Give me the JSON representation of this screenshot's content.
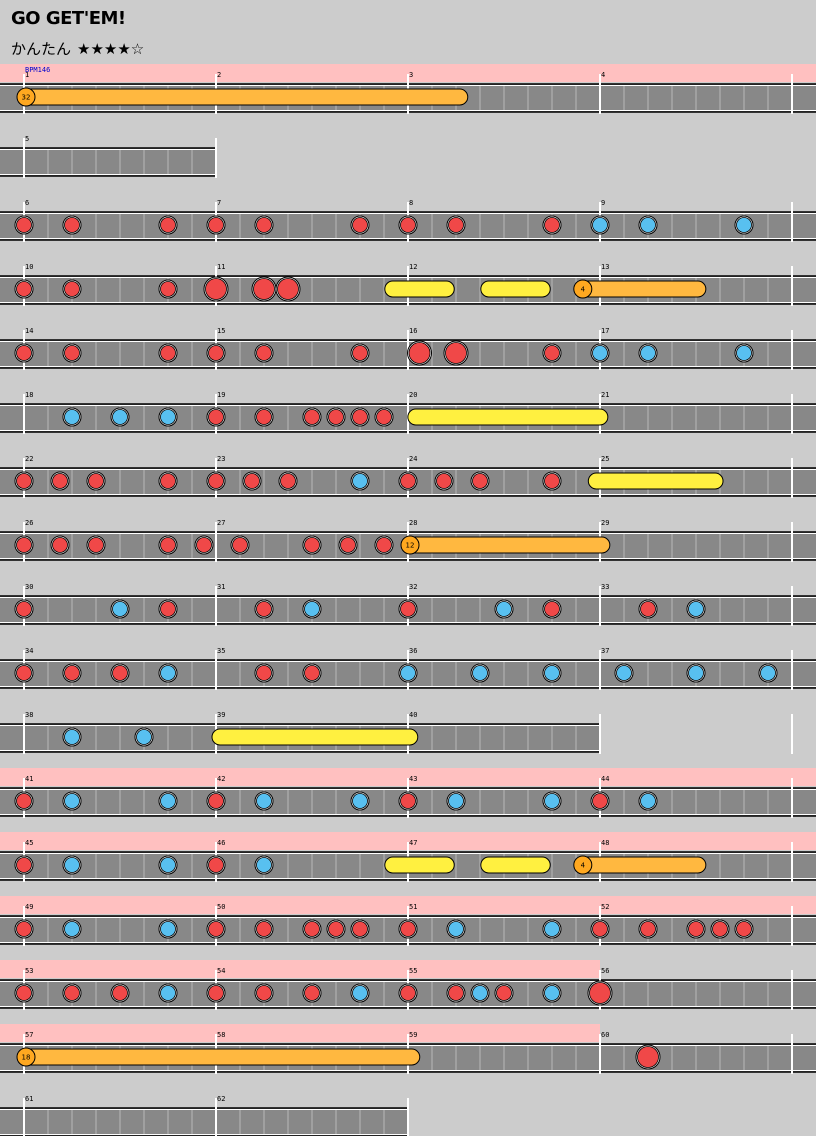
{
  "title": "GO GET'EM!",
  "difficulty": {
    "label": "かんたん",
    "stars": "★★★★☆"
  },
  "colors": {
    "background": "#cccccc",
    "lane": "#888888",
    "gogo_band": "#ffc0c0",
    "don": "#f04848",
    "ka": "#58c0f0",
    "drumroll": "#fff040",
    "balloon": "#ffb840",
    "bpm_text": "#0000cc"
  },
  "bpm_label": "BPM146",
  "rows": [
    {
      "measures": [
        1,
        2,
        3,
        4
      ],
      "gogo": true,
      "bpm": true,
      "notes": [],
      "rolls": [],
      "balloons": [
        {
          "start": 0,
          "end": 2.28,
          "count": "32"
        }
      ]
    },
    {
      "measures": [
        5
      ],
      "gogo": false,
      "notes": [],
      "rolls": [],
      "balloons": []
    },
    {
      "measures": [
        6,
        7,
        8,
        9
      ],
      "gogo": false,
      "notes": [
        [
          0,
          "d"
        ],
        [
          0.25,
          "d"
        ],
        [
          0.75,
          "d"
        ],
        [
          1,
          "d"
        ],
        [
          1.25,
          "d"
        ],
        [
          1.75,
          "d"
        ],
        [
          2,
          "d"
        ],
        [
          2.25,
          "d"
        ],
        [
          2.75,
          "d"
        ],
        [
          3,
          "k"
        ],
        [
          3.25,
          "k"
        ],
        [
          3.75,
          "k"
        ]
      ],
      "rolls": [],
      "balloons": []
    },
    {
      "measures": [
        10,
        11,
        12,
        13
      ],
      "gogo": false,
      "notes": [
        [
          0,
          "d"
        ],
        [
          0.25,
          "d"
        ],
        [
          0.75,
          "d"
        ],
        [
          1,
          "D"
        ],
        [
          1.25,
          "D"
        ],
        [
          1.375,
          "D"
        ]
      ],
      "rolls": [
        [
          1.9,
          2.22
        ],
        [
          2.4,
          2.72
        ]
      ],
      "balloons": [
        {
          "start": 2.9,
          "end": 3.52,
          "count": "4"
        }
      ]
    },
    {
      "measures": [
        14,
        15,
        16,
        17
      ],
      "gogo": false,
      "notes": [
        [
          0,
          "d"
        ],
        [
          0.25,
          "d"
        ],
        [
          0.75,
          "d"
        ],
        [
          1,
          "d"
        ],
        [
          1.25,
          "d"
        ],
        [
          1.75,
          "d"
        ],
        [
          2.06,
          "D"
        ],
        [
          2.25,
          "D"
        ],
        [
          2.75,
          "d"
        ],
        [
          3,
          "k"
        ],
        [
          3.25,
          "k"
        ],
        [
          3.75,
          "k"
        ]
      ],
      "rolls": [],
      "balloons": []
    },
    {
      "measures": [
        18,
        19,
        20,
        21
      ],
      "gogo": false,
      "notes": [
        [
          0.25,
          "k"
        ],
        [
          0.5,
          "k"
        ],
        [
          0.75,
          "k"
        ],
        [
          1,
          "d"
        ],
        [
          1.25,
          "d"
        ],
        [
          1.5,
          "d"
        ],
        [
          1.625,
          "d"
        ],
        [
          1.75,
          "d"
        ],
        [
          1.875,
          "d"
        ]
      ],
      "rolls": [
        [
          2.02,
          3.02
        ]
      ],
      "balloons": []
    },
    {
      "measures": [
        22,
        23,
        24,
        25
      ],
      "gogo": false,
      "notes": [
        [
          0,
          "d"
        ],
        [
          0.1875,
          "d"
        ],
        [
          0.375,
          "d"
        ],
        [
          0.75,
          "d"
        ],
        [
          1,
          "d"
        ],
        [
          1.1875,
          "d"
        ],
        [
          1.375,
          "d"
        ],
        [
          1.75,
          "k"
        ],
        [
          2,
          "d"
        ],
        [
          2.1875,
          "d"
        ],
        [
          2.375,
          "d"
        ],
        [
          2.75,
          "d"
        ]
      ],
      "rolls": [
        [
          2.96,
          3.62
        ]
      ],
      "balloons": []
    },
    {
      "measures": [
        26,
        27,
        28,
        29
      ],
      "gogo": false,
      "notes": [
        [
          0,
          "d"
        ],
        [
          0.1875,
          "d"
        ],
        [
          0.375,
          "d"
        ],
        [
          0.75,
          "d"
        ],
        [
          0.9375,
          "d"
        ],
        [
          1.125,
          "d"
        ],
        [
          1.5,
          "d"
        ],
        [
          1.6875,
          "d"
        ],
        [
          1.875,
          "d"
        ]
      ],
      "rolls": [],
      "balloons": [
        {
          "start": 2,
          "end": 3.02,
          "count": "12"
        }
      ]
    },
    {
      "measures": [
        30,
        31,
        32,
        33
      ],
      "gogo": false,
      "notes": [
        [
          0,
          "d"
        ],
        [
          0.5,
          "k"
        ],
        [
          0.75,
          "d"
        ],
        [
          1.25,
          "d"
        ],
        [
          1.5,
          "k"
        ],
        [
          2,
          "d"
        ],
        [
          2.5,
          "k"
        ],
        [
          2.75,
          "d"
        ],
        [
          3.25,
          "d"
        ],
        [
          3.5,
          "k"
        ]
      ],
      "rolls": [],
      "balloons": []
    },
    {
      "measures": [
        34,
        35,
        36,
        37
      ],
      "gogo": false,
      "notes": [
        [
          0,
          "d"
        ],
        [
          0.25,
          "d"
        ],
        [
          0.5,
          "d"
        ],
        [
          0.75,
          "k"
        ],
        [
          1.25,
          "d"
        ],
        [
          1.5,
          "d"
        ],
        [
          2,
          "k"
        ],
        [
          2.375,
          "k"
        ],
        [
          2.75,
          "k"
        ],
        [
          3.125,
          "k"
        ],
        [
          3.5,
          "k"
        ],
        [
          3.875,
          "k"
        ]
      ],
      "rolls": [],
      "balloons": []
    },
    {
      "measures": [
        38,
        39,
        40
      ],
      "gogo": false,
      "notes": [
        [
          0.25,
          "k"
        ],
        [
          0.625,
          "k"
        ]
      ],
      "rolls": [
        [
          1,
          2.03
        ]
      ],
      "balloons": []
    },
    {
      "measures": [
        41,
        42,
        43,
        44
      ],
      "gogo": true,
      "notes": [
        [
          0,
          "d"
        ],
        [
          0.25,
          "k"
        ],
        [
          0.75,
          "k"
        ],
        [
          1,
          "d"
        ],
        [
          1.25,
          "k"
        ],
        [
          1.75,
          "k"
        ],
        [
          2,
          "d"
        ],
        [
          2.25,
          "k"
        ],
        [
          2.75,
          "k"
        ],
        [
          3,
          "d"
        ],
        [
          3.25,
          "k"
        ]
      ],
      "rolls": [],
      "balloons": []
    },
    {
      "measures": [
        45,
        46,
        47,
        48
      ],
      "gogo": true,
      "notes": [
        [
          0,
          "d"
        ],
        [
          0.25,
          "k"
        ],
        [
          0.75,
          "k"
        ],
        [
          1,
          "d"
        ],
        [
          1.25,
          "k"
        ]
      ],
      "rolls": [
        [
          1.9,
          2.22
        ],
        [
          2.4,
          2.72
        ]
      ],
      "balloons": [
        {
          "start": 2.9,
          "end": 3.52,
          "count": "4"
        }
      ]
    },
    {
      "measures": [
        49,
        50,
        51,
        52
      ],
      "gogo": true,
      "notes": [
        [
          0,
          "d"
        ],
        [
          0.25,
          "k"
        ],
        [
          0.75,
          "k"
        ],
        [
          1,
          "d"
        ],
        [
          1.25,
          "d"
        ],
        [
          1.5,
          "d"
        ],
        [
          1.625,
          "d"
        ],
        [
          1.75,
          "d"
        ],
        [
          2,
          "d"
        ],
        [
          2.25,
          "k"
        ],
        [
          2.75,
          "k"
        ],
        [
          3,
          "d"
        ],
        [
          3.25,
          "d"
        ],
        [
          3.5,
          "d"
        ],
        [
          3.625,
          "d"
        ],
        [
          3.75,
          "d"
        ]
      ],
      "rolls": [],
      "balloons": []
    },
    {
      "measures": [
        53,
        54,
        55,
        56
      ],
      "gogo": true,
      "gogo_measures": 3,
      "notes": [
        [
          0,
          "d"
        ],
        [
          0.25,
          "d"
        ],
        [
          0.5,
          "d"
        ],
        [
          0.75,
          "k"
        ],
        [
          1,
          "d"
        ],
        [
          1.25,
          "d"
        ],
        [
          1.5,
          "d"
        ],
        [
          1.75,
          "k"
        ],
        [
          2,
          "d"
        ],
        [
          2.25,
          "d"
        ],
        [
          2.375,
          "k"
        ],
        [
          2.5,
          "d"
        ],
        [
          2.75,
          "k"
        ],
        [
          3,
          "D"
        ]
      ],
      "rolls": [],
      "balloons": []
    },
    {
      "measures": [
        57,
        58,
        59,
        60
      ],
      "gogo": true,
      "gogo_measures": 3,
      "notes": [
        [
          3.25,
          "D"
        ]
      ],
      "rolls": [],
      "balloons": [
        {
          "start": 0,
          "end": 2.03,
          "count": "18"
        }
      ]
    },
    {
      "measures": [
        61,
        62
      ],
      "gogo": false,
      "notes": [],
      "rolls": [],
      "balloons": []
    }
  ]
}
